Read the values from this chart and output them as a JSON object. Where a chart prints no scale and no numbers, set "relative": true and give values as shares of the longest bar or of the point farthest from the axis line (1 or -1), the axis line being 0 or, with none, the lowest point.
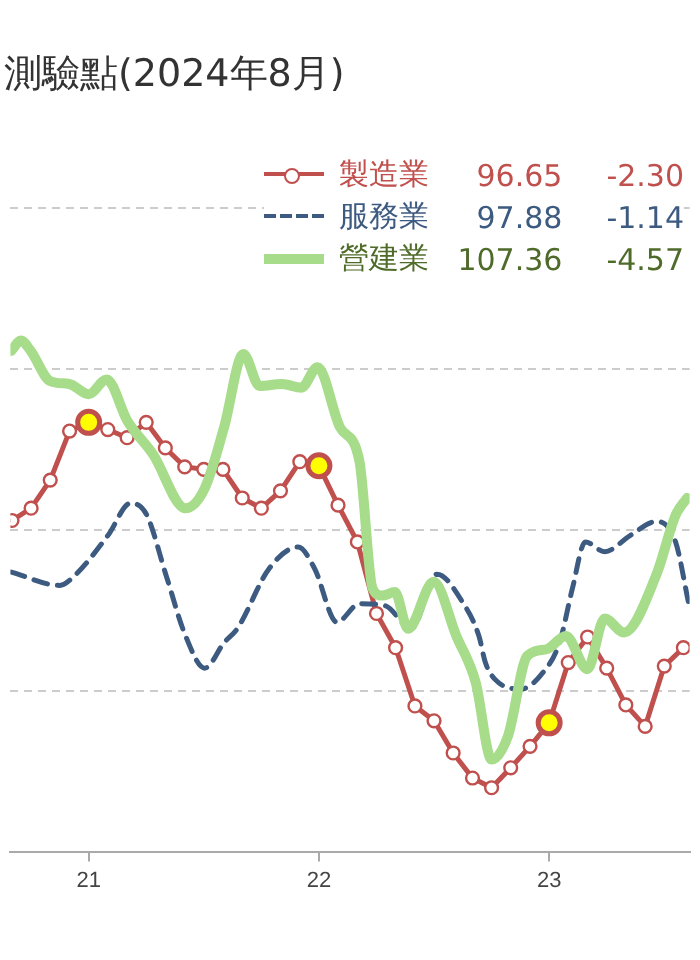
{
  "chart_data": {
    "type": "line",
    "title": "測驗點(2024年8月)",
    "relative": true,
    "legend": "top right",
    "grid": "y",
    "xlim": [
      20.66,
      23.61
    ],
    "xticks": [
      21,
      22,
      23
    ],
    "annotations": [
      "96.65",
      "-2.30",
      "97.88",
      "-1.14",
      "107.36",
      "-4.57"
    ],
    "series": [
      {
        "name": "製造業",
        "color": "#c0504d",
        "marker": "circle",
        "line_style": "solid",
        "colors": [
          "#ffffff",
          "#ffffff",
          "#ffffff",
          "#ffffff",
          "#ffff00",
          "#ffffff",
          "#ffffff",
          "#ffffff",
          "#ffffff",
          "#ffffff",
          "#ffffff",
          "#ffffff",
          "#ffffff",
          "#ffffff",
          "#ffffff",
          "#ffffff",
          "#ffff00",
          "#ffffff",
          "#ffffff",
          "#ffffff",
          "#ffffff",
          "#ffffff",
          "#ffffff",
          "#ffffff",
          "#ffffff",
          "#ffffff",
          "#ffffff",
          "#ffffff",
          "#ffff00",
          "#ffffff",
          "#ffffff",
          "#ffffff",
          "#ffffff",
          "#ffffff",
          "#ffffff",
          "#ffffff"
        ],
        "x": [
          20.667,
          20.75,
          20.833,
          20.917,
          21,
          21.083,
          21.167,
          21.25,
          21.333,
          21.417,
          21.5,
          21.583,
          21.667,
          21.75,
          21.833,
          21.917,
          22,
          22.083,
          22.167,
          22.25,
          22.333,
          22.417,
          22.5,
          22.583,
          22.667,
          22.75,
          22.833,
          22.917,
          23,
          23.083,
          23.167,
          23.25,
          23.333,
          23.417,
          23.5,
          23.583
        ],
        "values": [
          0.648,
          0.672,
          0.727,
          0.823,
          0.84,
          0.826,
          0.81,
          0.84,
          0.79,
          0.753,
          0.748,
          0.748,
          0.692,
          0.672,
          0.706,
          0.763,
          0.755,
          0.678,
          0.606,
          0.466,
          0.399,
          0.285,
          0.256,
          0.193,
          0.144,
          0.125,
          0.164,
          0.206,
          0.252,
          0.37,
          0.42,
          0.359,
          0.287,
          0.245,
          0.363,
          0.399
        ]
      },
      {
        "name": "服務業",
        "color": "#3d5a80",
        "marker": "none",
        "line_style": "dashed",
        "x": [
          20.664,
          20.874,
          20.941,
          21.084,
          21.182,
          21.252,
          21.336,
          21.42,
          21.504,
          21.588,
          21.645,
          21.784,
          21.91,
          21.981,
          22.078,
          22.176,
          22.288,
          22.401,
          22.513,
          22.624,
          22.695,
          22.723,
          22.765,
          22.876,
          22.961,
          23.045,
          23.101,
          23.157,
          23.241,
          23.353,
          23.465,
          23.549,
          23.605
        ],
        "values": [
          0.547,
          0.521,
          0.541,
          0.619,
          0.682,
          0.659,
          0.541,
          0.423,
          0.359,
          0.409,
          0.436,
          0.554,
          0.596,
          0.554,
          0.449,
          0.485,
          0.481,
          0.436,
          0.543,
          0.488,
          0.422,
          0.37,
          0.337,
          0.318,
          0.344,
          0.409,
          0.515,
          0.606,
          0.587,
          0.619,
          0.646,
          0.606,
          0.488
        ]
      },
      {
        "name": "營建業",
        "color": "#a6dc8a",
        "marker": "none",
        "line_style": "solid",
        "x": [
          20.664,
          20.706,
          20.748,
          20.832,
          20.916,
          21,
          21.078,
          21.168,
          21.28,
          21.42,
          21.504,
          21.588,
          21.672,
          21.742,
          21.84,
          21.924,
          21.994,
          22.092,
          22.176,
          22.233,
          22.275,
          22.33,
          22.387,
          22.498,
          22.597,
          22.681,
          22.75,
          22.821,
          22.905,
          22.989,
          23.073,
          23.166,
          23.241,
          23.325,
          23.465,
          23.55,
          23.599
        ],
        "values": [
          0.98,
          1,
          0.98,
          0.921,
          0.915,
          0.895,
          0.924,
          0.843,
          0.777,
          0.672,
          0.711,
          0.83,
          0.974,
          0.911,
          0.915,
          0.908,
          0.948,
          0.83,
          0.764,
          0.515,
          0.501,
          0.508,
          0.436,
          0.528,
          0.422,
          0.331,
          0.18,
          0.226,
          0.383,
          0.396,
          0.422,
          0.357,
          0.456,
          0.429,
          0.541,
          0.659,
          0.692
        ]
      }
    ]
  }
}
